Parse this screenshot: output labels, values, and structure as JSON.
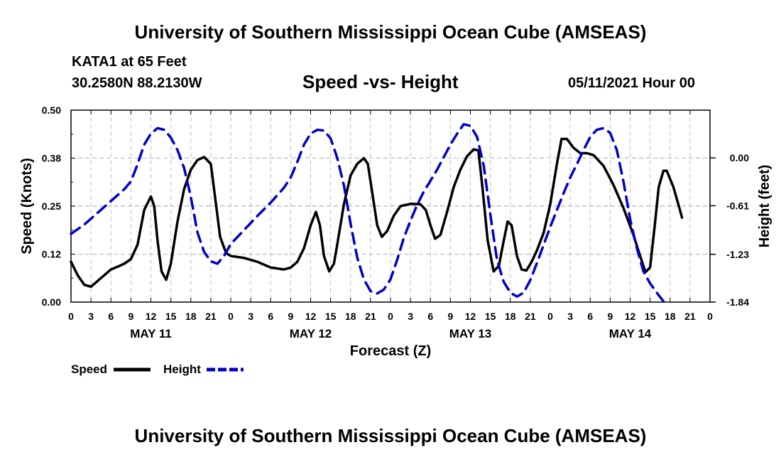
{
  "header": {
    "top_title": "University of Southern Mississippi Ocean Cube (AMSEAS)",
    "station": "KATA1 at 65 Feet",
    "coords": "30.2580N  88.2130W",
    "datetime": "05/11/2021 Hour 00",
    "bottom_title": "University of Southern Mississippi Ocean Cube (AMSEAS)"
  },
  "colors": {
    "speed": "#000000",
    "height": "#0000cc",
    "grid": "#c0c0c0"
  },
  "chart_data": {
    "type": "line",
    "title": "Speed -vs- Height",
    "xlabel": "Forecast (Z)",
    "ylabel": "Speed (Knots)",
    "y2label": "Height (feet)",
    "xlim": [
      0,
      96
    ],
    "ylim": [
      0,
      0.5
    ],
    "y2lim": [
      -1.84,
      0.61
    ],
    "grid": true,
    "legend_position": "bottom-left",
    "x_tick_labels": [
      "0",
      "3",
      "6",
      "9",
      "12",
      "15",
      "18",
      "21",
      "0",
      "3",
      "6",
      "9",
      "12",
      "15",
      "18",
      "21",
      "0",
      "3",
      "6",
      "9",
      "12",
      "15",
      "18",
      "21",
      "0",
      "3",
      "6",
      "9",
      "12",
      "15",
      "18",
      "21",
      "0"
    ],
    "day_labels": [
      {
        "hour": 12,
        "label": "MAY 11"
      },
      {
        "hour": 36,
        "label": "MAY 12"
      },
      {
        "hour": 60,
        "label": "MAY 13"
      },
      {
        "hour": 84,
        "label": "MAY 14"
      }
    ],
    "y_ticks": [
      0,
      0.125,
      0.25,
      0.375,
      0.5
    ],
    "y_tick_labels": [
      "0.00",
      "0.12",
      "0.25",
      "0.38",
      "0.50"
    ],
    "y2_ticks": [
      -1.84,
      -1.23,
      -0.61,
      0.0
    ],
    "y2_tick_labels": [
      "-1.84",
      "-1.23",
      "-0.61",
      "0.00"
    ],
    "series": [
      {
        "name": "Speed",
        "axis": "left",
        "style": "solid",
        "points": [
          [
            0,
            0.105
          ],
          [
            1,
            0.07
          ],
          [
            2,
            0.045
          ],
          [
            3,
            0.04
          ],
          [
            4,
            0.055
          ],
          [
            5,
            0.07
          ],
          [
            6,
            0.085
          ],
          [
            7,
            0.092
          ],
          [
            8,
            0.1
          ],
          [
            9,
            0.112
          ],
          [
            10,
            0.15
          ],
          [
            11,
            0.24
          ],
          [
            12,
            0.275
          ],
          [
            12.5,
            0.25
          ],
          [
            13,
            0.16
          ],
          [
            13.6,
            0.08
          ],
          [
            14.3,
            0.058
          ],
          [
            15,
            0.1
          ],
          [
            16,
            0.21
          ],
          [
            17,
            0.295
          ],
          [
            18,
            0.345
          ],
          [
            19,
            0.37
          ],
          [
            20,
            0.378
          ],
          [
            21,
            0.36
          ],
          [
            21.6,
            0.28
          ],
          [
            22.4,
            0.17
          ],
          [
            23.3,
            0.128
          ],
          [
            24,
            0.12
          ],
          [
            26,
            0.115
          ],
          [
            28,
            0.105
          ],
          [
            30,
            0.09
          ],
          [
            32,
            0.085
          ],
          [
            33,
            0.09
          ],
          [
            34,
            0.105
          ],
          [
            35,
            0.14
          ],
          [
            36,
            0.2
          ],
          [
            36.8,
            0.235
          ],
          [
            37.4,
            0.2
          ],
          [
            38,
            0.12
          ],
          [
            38.8,
            0.08
          ],
          [
            39.5,
            0.1
          ],
          [
            40,
            0.15
          ],
          [
            41,
            0.255
          ],
          [
            42,
            0.33
          ],
          [
            43,
            0.36
          ],
          [
            44,
            0.375
          ],
          [
            44.6,
            0.36
          ],
          [
            45.3,
            0.28
          ],
          [
            46,
            0.2
          ],
          [
            46.7,
            0.17
          ],
          [
            47.5,
            0.185
          ],
          [
            48.5,
            0.225
          ],
          [
            49.5,
            0.25
          ],
          [
            51,
            0.256
          ],
          [
            52.5,
            0.255
          ],
          [
            53.3,
            0.24
          ],
          [
            54,
            0.2
          ],
          [
            54.7,
            0.165
          ],
          [
            55.5,
            0.175
          ],
          [
            56.5,
            0.235
          ],
          [
            57.5,
            0.3
          ],
          [
            58.5,
            0.345
          ],
          [
            59.5,
            0.38
          ],
          [
            60.5,
            0.398
          ],
          [
            61.2,
            0.395
          ],
          [
            61.8,
            0.3
          ],
          [
            62.6,
            0.16
          ],
          [
            63.5,
            0.08
          ],
          [
            64.3,
            0.095
          ],
          [
            64.9,
            0.15
          ],
          [
            65.6,
            0.21
          ],
          [
            66.2,
            0.2
          ],
          [
            67,
            0.12
          ],
          [
            67.7,
            0.085
          ],
          [
            68.4,
            0.082
          ],
          [
            69.2,
            0.105
          ],
          [
            70,
            0.135
          ],
          [
            71,
            0.18
          ],
          [
            72,
            0.255
          ],
          [
            73,
            0.36
          ],
          [
            73.7,
            0.425
          ],
          [
            74.5,
            0.425
          ],
          [
            75.5,
            0.402
          ],
          [
            76.5,
            0.388
          ],
          [
            77.5,
            0.388
          ],
          [
            78.5,
            0.383
          ],
          [
            80,
            0.355
          ],
          [
            81.5,
            0.305
          ],
          [
            83,
            0.245
          ],
          [
            84.5,
            0.175
          ],
          [
            85.5,
            0.12
          ],
          [
            86.3,
            0.078
          ],
          [
            87,
            0.09
          ],
          [
            87.7,
            0.2
          ],
          [
            88.3,
            0.3
          ],
          [
            89,
            0.342
          ],
          [
            89.5,
            0.342
          ],
          [
            90.5,
            0.3
          ],
          [
            91.4,
            0.245
          ],
          [
            91.8,
            0.22
          ]
        ]
      },
      {
        "name": "Height",
        "axis": "right",
        "style": "dashed",
        "points": [
          [
            0,
            -0.97
          ],
          [
            2,
            -0.85
          ],
          [
            4,
            -0.7
          ],
          [
            6,
            -0.55
          ],
          [
            8,
            -0.4
          ],
          [
            9,
            -0.3
          ],
          [
            10,
            -0.08
          ],
          [
            11,
            0.17
          ],
          [
            12,
            0.31
          ],
          [
            13,
            0.38
          ],
          [
            14,
            0.36
          ],
          [
            15,
            0.26
          ],
          [
            16,
            0.1
          ],
          [
            17,
            -0.13
          ],
          [
            18,
            -0.5
          ],
          [
            19,
            -0.95
          ],
          [
            20,
            -1.2
          ],
          [
            21,
            -1.32
          ],
          [
            22,
            -1.35
          ],
          [
            23,
            -1.25
          ],
          [
            24,
            -1.1
          ],
          [
            26,
            -0.92
          ],
          [
            28,
            -0.74
          ],
          [
            30,
            -0.57
          ],
          [
            32,
            -0.38
          ],
          [
            33,
            -0.25
          ],
          [
            34,
            -0.05
          ],
          [
            35,
            0.17
          ],
          [
            36,
            0.31
          ],
          [
            37,
            0.36
          ],
          [
            38,
            0.35
          ],
          [
            39,
            0.25
          ],
          [
            40,
            0.0
          ],
          [
            41,
            -0.35
          ],
          [
            42,
            -0.84
          ],
          [
            43,
            -1.27
          ],
          [
            44,
            -1.55
          ],
          [
            45,
            -1.7
          ],
          [
            46,
            -1.73
          ],
          [
            47,
            -1.68
          ],
          [
            48,
            -1.55
          ],
          [
            49,
            -1.3
          ],
          [
            50,
            -1.02
          ],
          [
            51,
            -0.8
          ],
          [
            52,
            -0.6
          ],
          [
            53,
            -0.43
          ],
          [
            54,
            -0.29
          ],
          [
            55,
            -0.15
          ],
          [
            56,
            0.01
          ],
          [
            57,
            0.17
          ],
          [
            58,
            0.31
          ],
          [
            59,
            0.43
          ],
          [
            60,
            0.41
          ],
          [
            61,
            0.27
          ],
          [
            62,
            -0.1
          ],
          [
            63,
            -0.72
          ],
          [
            64,
            -1.3
          ],
          [
            65,
            -1.58
          ],
          [
            66,
            -1.72
          ],
          [
            67,
            -1.77
          ],
          [
            68,
            -1.72
          ],
          [
            69,
            -1.56
          ],
          [
            70,
            -1.34
          ],
          [
            72,
            -0.88
          ],
          [
            74,
            -0.45
          ],
          [
            75,
            -0.25
          ],
          [
            76,
            -0.08
          ],
          [
            77,
            0.1
          ],
          [
            78,
            0.27
          ],
          [
            79,
            0.36
          ],
          [
            80,
            0.38
          ],
          [
            81,
            0.32
          ],
          [
            82,
            0.1
          ],
          [
            83,
            -0.3
          ],
          [
            84,
            -0.78
          ],
          [
            85,
            -1.15
          ],
          [
            86,
            -1.45
          ],
          [
            87,
            -1.6
          ],
          [
            88,
            -1.72
          ],
          [
            89,
            -1.83
          ],
          [
            89.5,
            -1.87
          ]
        ]
      }
    ],
    "legend": [
      {
        "label": "Speed",
        "style": "solid"
      },
      {
        "label": "Height",
        "style": "dashed"
      }
    ]
  }
}
